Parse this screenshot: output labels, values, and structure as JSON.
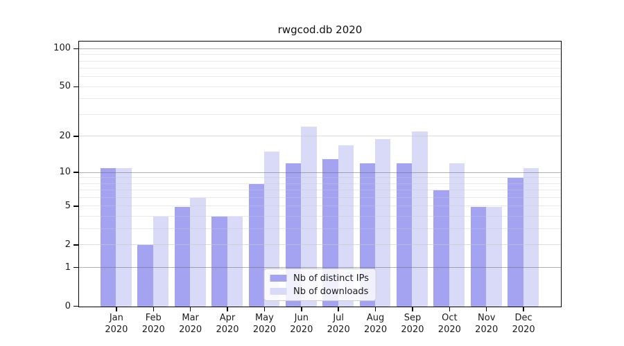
{
  "chart_data": {
    "type": "bar",
    "title": "rwgcod.db 2020",
    "x_months": [
      "Jan",
      "Feb",
      "Mar",
      "Apr",
      "May",
      "Jun",
      "Jul",
      "Aug",
      "Sep",
      "Oct",
      "Nov",
      "Dec"
    ],
    "x_year": "2020",
    "series": [
      {
        "name": "Nb of distinct IPs",
        "color": "#a3a3f2",
        "values": [
          11,
          2,
          5,
          4,
          8,
          12,
          13,
          12,
          12,
          7,
          5,
          9
        ]
      },
      {
        "name": "Nb of downloads",
        "color": "#d9d9f8",
        "values": [
          11,
          4,
          6,
          4,
          15,
          24,
          17,
          19,
          22,
          12,
          5,
          11
        ]
      }
    ],
    "yscale": "log1p",
    "ylim": [
      0,
      113
    ],
    "yticks": [
      0,
      1,
      2,
      5,
      10,
      20,
      50,
      100
    ],
    "grid_major": [
      1,
      10,
      100
    ],
    "grid_minor": [
      2,
      3,
      4,
      6,
      7,
      8,
      9,
      20,
      30,
      40,
      60,
      70,
      80,
      90
    ],
    "grid_minor_labeled": [
      2,
      5,
      20,
      50
    ],
    "legend_position": "lower center",
    "xlabel": "",
    "ylabel": ""
  }
}
